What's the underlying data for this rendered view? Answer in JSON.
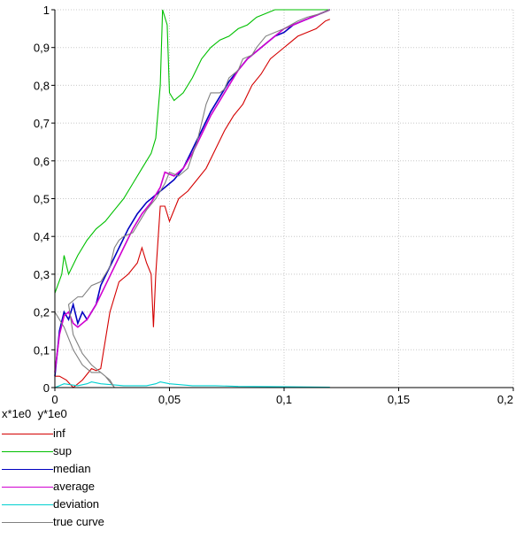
{
  "chart_data": {
    "type": "line",
    "xlim": [
      0,
      0.2
    ],
    "ylim": [
      0,
      1
    ],
    "x_ticks": [
      "0",
      "0,05",
      "0,1",
      "0,15",
      "0,2"
    ],
    "y_ticks": [
      "0",
      "0,1",
      "0,2",
      "0,3",
      "0,4",
      "0,5",
      "0,6",
      "0,7",
      "0,8",
      "0,9",
      "1"
    ],
    "x_tick_values": [
      0,
      0.05,
      0.1,
      0.15,
      0.2
    ],
    "y_tick_values": [
      0,
      0.1,
      0.2,
      0.3,
      0.4,
      0.5,
      0.6,
      0.7,
      0.8,
      0.9,
      1
    ],
    "axis_note": "x*1e0  y*1e0",
    "grid": true,
    "legend_position": "bottom-left",
    "series": [
      {
        "name": "inf",
        "color": "#d40000",
        "points": [
          [
            0,
            0.03
          ],
          [
            0.002,
            0.03
          ],
          [
            0.005,
            0.02
          ],
          [
            0.008,
            0.0
          ],
          [
            0.012,
            0.02
          ],
          [
            0.016,
            0.05
          ],
          [
            0.018,
            0.045
          ],
          [
            0.02,
            0.05
          ],
          [
            0.024,
            0.2
          ],
          [
            0.028,
            0.28
          ],
          [
            0.032,
            0.3
          ],
          [
            0.036,
            0.33
          ],
          [
            0.038,
            0.37
          ],
          [
            0.04,
            0.33
          ],
          [
            0.042,
            0.3
          ],
          [
            0.043,
            0.16
          ],
          [
            0.044,
            0.3
          ],
          [
            0.046,
            0.48
          ],
          [
            0.048,
            0.48
          ],
          [
            0.05,
            0.44
          ],
          [
            0.054,
            0.5
          ],
          [
            0.058,
            0.52
          ],
          [
            0.062,
            0.55
          ],
          [
            0.066,
            0.58
          ],
          [
            0.07,
            0.63
          ],
          [
            0.074,
            0.68
          ],
          [
            0.078,
            0.72
          ],
          [
            0.082,
            0.75
          ],
          [
            0.086,
            0.8
          ],
          [
            0.09,
            0.83
          ],
          [
            0.094,
            0.87
          ],
          [
            0.098,
            0.89
          ],
          [
            0.102,
            0.91
          ],
          [
            0.106,
            0.93
          ],
          [
            0.11,
            0.94
          ],
          [
            0.114,
            0.95
          ],
          [
            0.118,
            0.97
          ],
          [
            0.12,
            0.975
          ]
        ]
      },
      {
        "name": "sup",
        "color": "#00c000",
        "points": [
          [
            0,
            0.25
          ],
          [
            0.003,
            0.3
          ],
          [
            0.004,
            0.35
          ],
          [
            0.006,
            0.3
          ],
          [
            0.01,
            0.35
          ],
          [
            0.014,
            0.39
          ],
          [
            0.018,
            0.42
          ],
          [
            0.022,
            0.44
          ],
          [
            0.026,
            0.47
          ],
          [
            0.03,
            0.5
          ],
          [
            0.034,
            0.54
          ],
          [
            0.038,
            0.58
          ],
          [
            0.042,
            0.62
          ],
          [
            0.044,
            0.66
          ],
          [
            0.046,
            0.8
          ],
          [
            0.047,
            1.0
          ],
          [
            0.049,
            0.96
          ],
          [
            0.05,
            0.78
          ],
          [
            0.052,
            0.76
          ],
          [
            0.056,
            0.78
          ],
          [
            0.06,
            0.82
          ],
          [
            0.064,
            0.87
          ],
          [
            0.068,
            0.9
          ],
          [
            0.072,
            0.92
          ],
          [
            0.076,
            0.93
          ],
          [
            0.08,
            0.95
          ],
          [
            0.084,
            0.96
          ],
          [
            0.088,
            0.98
          ],
          [
            0.092,
            0.99
          ],
          [
            0.096,
            1.0
          ],
          [
            0.1,
            1.0
          ],
          [
            0.12,
            1.0
          ]
        ]
      },
      {
        "name": "median",
        "color": "#0000c0",
        "points": [
          [
            0,
            0.03
          ],
          [
            0.002,
            0.15
          ],
          [
            0.004,
            0.2
          ],
          [
            0.006,
            0.18
          ],
          [
            0.008,
            0.22
          ],
          [
            0.01,
            0.17
          ],
          [
            0.012,
            0.2
          ],
          [
            0.014,
            0.18
          ],
          [
            0.016,
            0.2
          ],
          [
            0.018,
            0.22
          ],
          [
            0.02,
            0.27
          ],
          [
            0.024,
            0.32
          ],
          [
            0.028,
            0.37
          ],
          [
            0.032,
            0.42
          ],
          [
            0.036,
            0.46
          ],
          [
            0.04,
            0.49
          ],
          [
            0.044,
            0.51
          ],
          [
            0.048,
            0.53
          ],
          [
            0.052,
            0.55
          ],
          [
            0.056,
            0.58
          ],
          [
            0.06,
            0.63
          ],
          [
            0.064,
            0.68
          ],
          [
            0.068,
            0.73
          ],
          [
            0.072,
            0.77
          ],
          [
            0.076,
            0.81
          ],
          [
            0.08,
            0.84
          ],
          [
            0.084,
            0.87
          ],
          [
            0.088,
            0.89
          ],
          [
            0.092,
            0.91
          ],
          [
            0.096,
            0.93
          ],
          [
            0.1,
            0.94
          ],
          [
            0.104,
            0.96
          ],
          [
            0.108,
            0.97
          ],
          [
            0.112,
            0.98
          ],
          [
            0.116,
            0.99
          ],
          [
            0.12,
            1.0
          ]
        ]
      },
      {
        "name": "average",
        "color": "#d000d0",
        "points": [
          [
            0,
            0.04
          ],
          [
            0.002,
            0.14
          ],
          [
            0.004,
            0.19
          ],
          [
            0.006,
            0.2
          ],
          [
            0.008,
            0.17
          ],
          [
            0.01,
            0.16
          ],
          [
            0.014,
            0.18
          ],
          [
            0.018,
            0.22
          ],
          [
            0.022,
            0.27
          ],
          [
            0.026,
            0.32
          ],
          [
            0.03,
            0.37
          ],
          [
            0.034,
            0.42
          ],
          [
            0.038,
            0.46
          ],
          [
            0.042,
            0.49
          ],
          [
            0.046,
            0.53
          ],
          [
            0.048,
            0.57
          ],
          [
            0.052,
            0.56
          ],
          [
            0.056,
            0.58
          ],
          [
            0.06,
            0.62
          ],
          [
            0.064,
            0.67
          ],
          [
            0.068,
            0.72
          ],
          [
            0.072,
            0.76
          ],
          [
            0.076,
            0.8
          ],
          [
            0.08,
            0.84
          ],
          [
            0.084,
            0.87
          ],
          [
            0.088,
            0.89
          ],
          [
            0.092,
            0.91
          ],
          [
            0.096,
            0.93
          ],
          [
            0.1,
            0.95
          ],
          [
            0.104,
            0.96
          ],
          [
            0.108,
            0.97
          ],
          [
            0.112,
            0.98
          ],
          [
            0.116,
            0.99
          ],
          [
            0.12,
            1.0
          ]
        ]
      },
      {
        "name": "deviation",
        "color": "#00d0d0",
        "points": [
          [
            0,
            0.0
          ],
          [
            0.004,
            0.01
          ],
          [
            0.01,
            0.005
          ],
          [
            0.014,
            0.01
          ],
          [
            0.016,
            0.015
          ],
          [
            0.02,
            0.01
          ],
          [
            0.03,
            0.005
          ],
          [
            0.04,
            0.005
          ],
          [
            0.044,
            0.01
          ],
          [
            0.046,
            0.015
          ],
          [
            0.05,
            0.01
          ],
          [
            0.06,
            0.005
          ],
          [
            0.07,
            0.005
          ],
          [
            0.08,
            0.003
          ],
          [
            0.1,
            0.002
          ],
          [
            0.12,
            0.001
          ]
        ]
      },
      {
        "name": "true curve",
        "color": "#808080",
        "points": [
          [
            0,
            0.2
          ],
          [
            0.004,
            0.16
          ],
          [
            0.008,
            0.1
          ],
          [
            0.012,
            0.06
          ],
          [
            0.016,
            0.04
          ],
          [
            0.02,
            0.04
          ],
          [
            0.024,
            0.02
          ],
          [
            0.026,
            0.0
          ],
          [
            0.022,
            0.03
          ],
          [
            0.016,
            0.06
          ],
          [
            0.012,
            0.09
          ],
          [
            0.008,
            0.14
          ],
          [
            0.006,
            0.22
          ],
          [
            0.01,
            0.24
          ],
          [
            0.012,
            0.24
          ],
          [
            0.016,
            0.27
          ],
          [
            0.02,
            0.28
          ],
          [
            0.024,
            0.32
          ],
          [
            0.026,
            0.37
          ],
          [
            0.028,
            0.39
          ],
          [
            0.03,
            0.4
          ],
          [
            0.034,
            0.41
          ],
          [
            0.038,
            0.45
          ],
          [
            0.04,
            0.47
          ],
          [
            0.044,
            0.5
          ],
          [
            0.048,
            0.54
          ],
          [
            0.05,
            0.57
          ],
          [
            0.054,
            0.56
          ],
          [
            0.058,
            0.58
          ],
          [
            0.062,
            0.65
          ],
          [
            0.064,
            0.7
          ],
          [
            0.066,
            0.75
          ],
          [
            0.068,
            0.78
          ],
          [
            0.072,
            0.78
          ],
          [
            0.074,
            0.79
          ],
          [
            0.076,
            0.82
          ],
          [
            0.08,
            0.84
          ],
          [
            0.082,
            0.87
          ],
          [
            0.086,
            0.88
          ],
          [
            0.088,
            0.9
          ],
          [
            0.092,
            0.93
          ],
          [
            0.096,
            0.94
          ],
          [
            0.1,
            0.95
          ],
          [
            0.106,
            0.97
          ],
          [
            0.11,
            0.98
          ],
          [
            0.116,
            0.99
          ],
          [
            0.12,
            1.0
          ]
        ]
      }
    ]
  }
}
